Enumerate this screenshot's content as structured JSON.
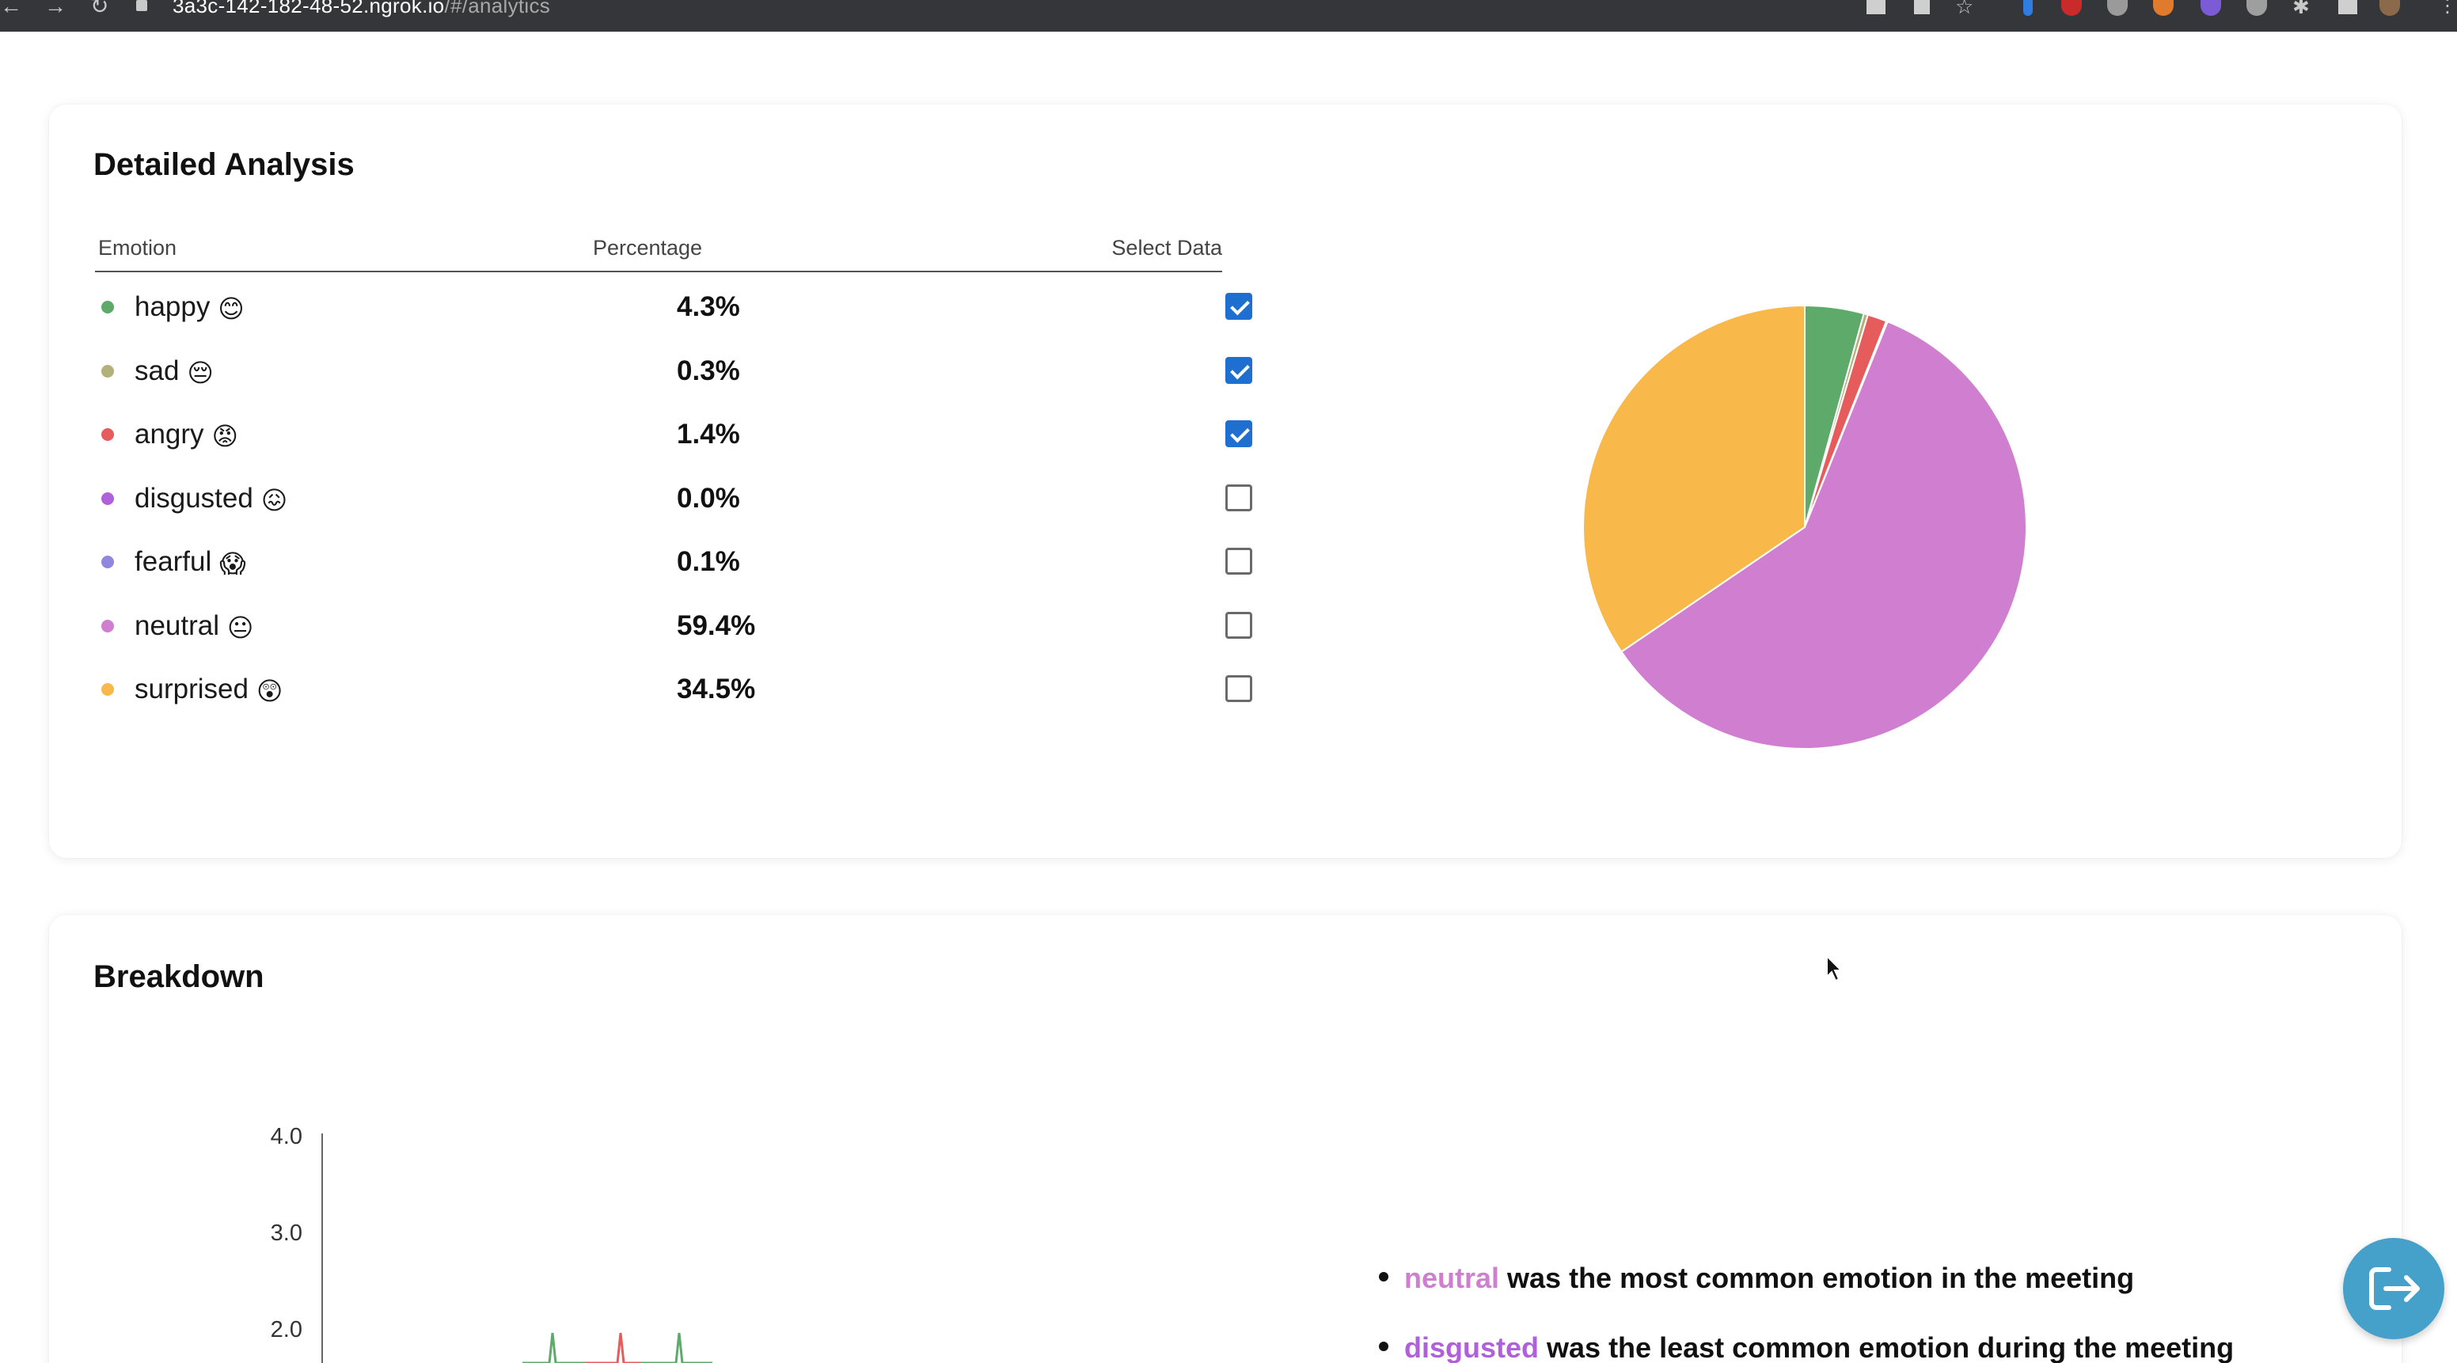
{
  "browser": {
    "url_host": "3a3c-142-182-48-52.ngrok.io",
    "url_path": "/#/analytics"
  },
  "analysis": {
    "title": "Detailed Analysis",
    "headers": {
      "emotion": "Emotion",
      "percentage": "Percentage",
      "select": "Select Data"
    },
    "rows": [
      {
        "name": "happy",
        "emoji": "😊",
        "percent": "4.3%",
        "selected": true,
        "color": "#5daa6a"
      },
      {
        "name": "sad",
        "emoji": "😔",
        "percent": "0.3%",
        "selected": true,
        "color": "#b3b07a"
      },
      {
        "name": "angry",
        "emoji": "😡",
        "percent": "1.4%",
        "selected": true,
        "color": "#e65c5c"
      },
      {
        "name": "disgusted",
        "emoji": "😖",
        "percent": "0.0%",
        "selected": false,
        "color": "#b061d9"
      },
      {
        "name": "fearful",
        "emoji": "😱",
        "percent": "0.1%",
        "selected": false,
        "color": "#8f86e0"
      },
      {
        "name": "neutral",
        "emoji": "😐",
        "percent": "59.4%",
        "selected": false,
        "color": "#d07fd0"
      },
      {
        "name": "surprised",
        "emoji": "😲",
        "percent": "34.5%",
        "selected": false,
        "color": "#f8b94a"
      }
    ]
  },
  "chart_data": {
    "type": "pie",
    "categories": [
      "happy",
      "sad",
      "angry",
      "disgusted",
      "fearful",
      "neutral",
      "surprised"
    ],
    "values": [
      4.3,
      0.3,
      1.4,
      0.0,
      0.1,
      59.4,
      34.5
    ],
    "colors": [
      "#5daa6a",
      "#b3b07a",
      "#e65c5c",
      "#b061d9",
      "#8f86e0",
      "#d07fd0",
      "#f8b94a"
    ]
  },
  "breakdown": {
    "title": "Breakdown",
    "y_ticks": [
      "4.0",
      "3.0",
      "2.0"
    ],
    "summary": [
      {
        "emotion": "neutral",
        "text": " was the most common emotion in the meeting",
        "color": "#d07fd0"
      },
      {
        "emotion": "disgusted",
        "text": " was the least common emotion during the meeting",
        "color": "#b061d9"
      }
    ]
  }
}
